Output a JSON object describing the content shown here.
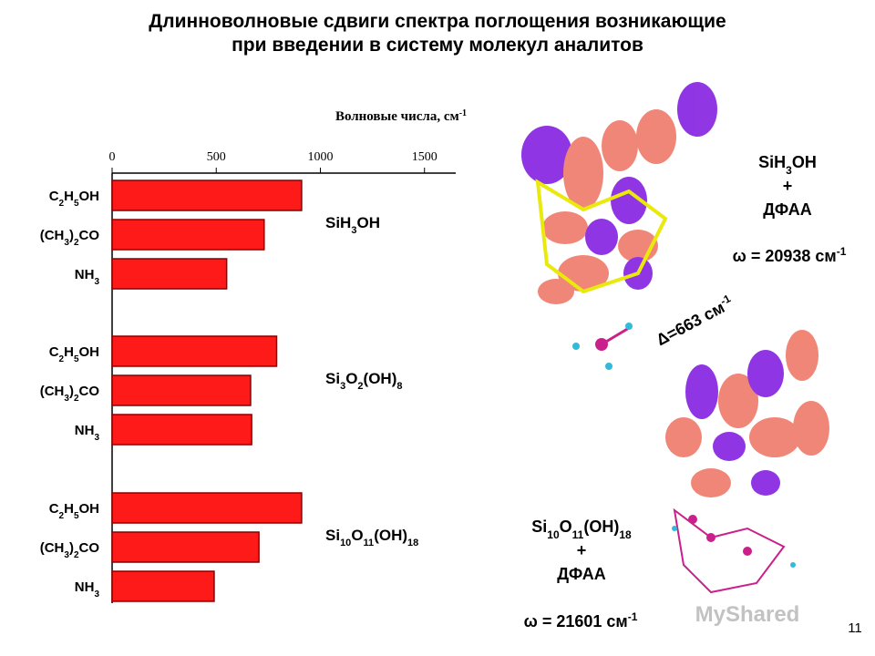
{
  "chart_data": {
    "type": "bar",
    "orientation": "horizontal",
    "title": [
      "Длинноволновые сдвиги спектра поглощения возникающие",
      "при введении в систему молекул аналитов"
    ],
    "xlabel": "Волновые числа, см-1",
    "xlim": [
      0,
      1650
    ],
    "xticks": [
      0,
      500,
      1000,
      1500
    ],
    "color": "#ff1a1a",
    "groups": [
      {
        "name": "SiH3OH",
        "categories": [
          "C2H5OH",
          "(CH3)2CO",
          "NH3"
        ],
        "values": [
          910,
          730,
          550
        ]
      },
      {
        "name": "Si3O2(OH)8",
        "categories": [
          "C2H5OH",
          "(CH3)2CO",
          "NH3"
        ],
        "values": [
          790,
          665,
          670
        ]
      },
      {
        "name": "Si10O11(OH)18",
        "categories": [
          "C2H5OH",
          "(CH3)2CO",
          "NH3"
        ],
        "values": [
          910,
          705,
          490
        ]
      }
    ],
    "annotations": {
      "top_complex": [
        "SiH3OH",
        "+",
        "ДФАА"
      ],
      "top_omega": "ω = 20938 см-1",
      "shift": "Δ=663 см-1",
      "bottom_complex": [
        "Si10O11(OH)18",
        "+",
        "ДФАА"
      ],
      "bottom_omega": "ω = 21601 см-1",
      "page_number": "11",
      "watermark": "MyShared"
    }
  }
}
